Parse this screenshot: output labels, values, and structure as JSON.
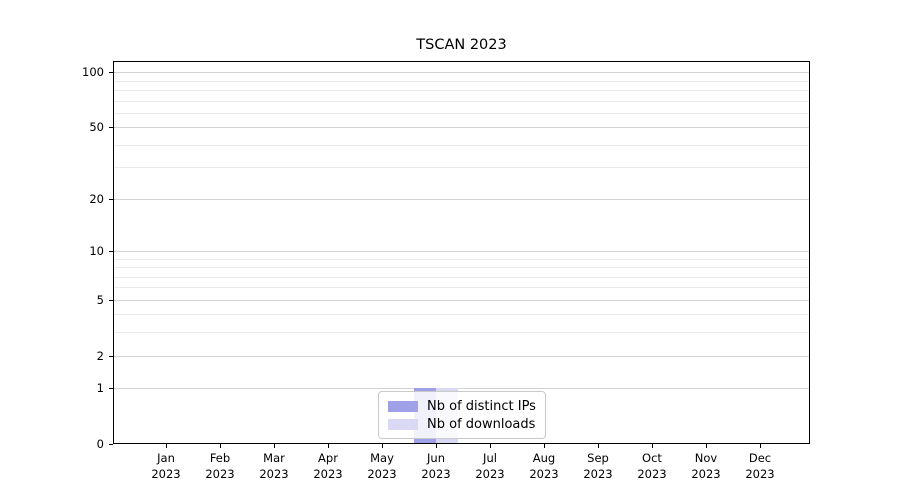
{
  "chart_data": {
    "type": "bar",
    "title": "TSCAN 2023",
    "categories": [
      "Jan",
      "Feb",
      "Mar",
      "Apr",
      "May",
      "Jun",
      "Jul",
      "Aug",
      "Sep",
      "Oct",
      "Nov",
      "Dec"
    ],
    "category_year": "2023",
    "series": [
      {
        "name": "Nb of distinct IPs",
        "color": "#a0a0e8",
        "values": [
          0,
          0,
          0,
          0,
          0,
          1,
          0,
          0,
          0,
          0,
          0,
          0
        ]
      },
      {
        "name": "Nb of downloads",
        "color": "#d9d9f6",
        "values": [
          0,
          0,
          0,
          0,
          0,
          1,
          0,
          0,
          0,
          0,
          0,
          0
        ]
      }
    ],
    "xlabel": "",
    "ylabel": "",
    "yscale": "log10(value+1)",
    "yticks": [
      0,
      1,
      2,
      5,
      10,
      20,
      50,
      100
    ],
    "yminor": [
      3,
      4,
      6,
      7,
      8,
      9,
      30,
      40,
      60,
      70,
      80,
      90
    ],
    "ylim": [
      0,
      115
    ],
    "grid": "horizontal major+minor",
    "legend_position": "bottom-center-inside"
  },
  "colors": {
    "background": "#ffffff",
    "axis": "#000000",
    "text": "#000000",
    "grid_major": "#d3d3d3",
    "grid_minor": "#ebebeb",
    "legend_border": "#c9c9c9"
  }
}
